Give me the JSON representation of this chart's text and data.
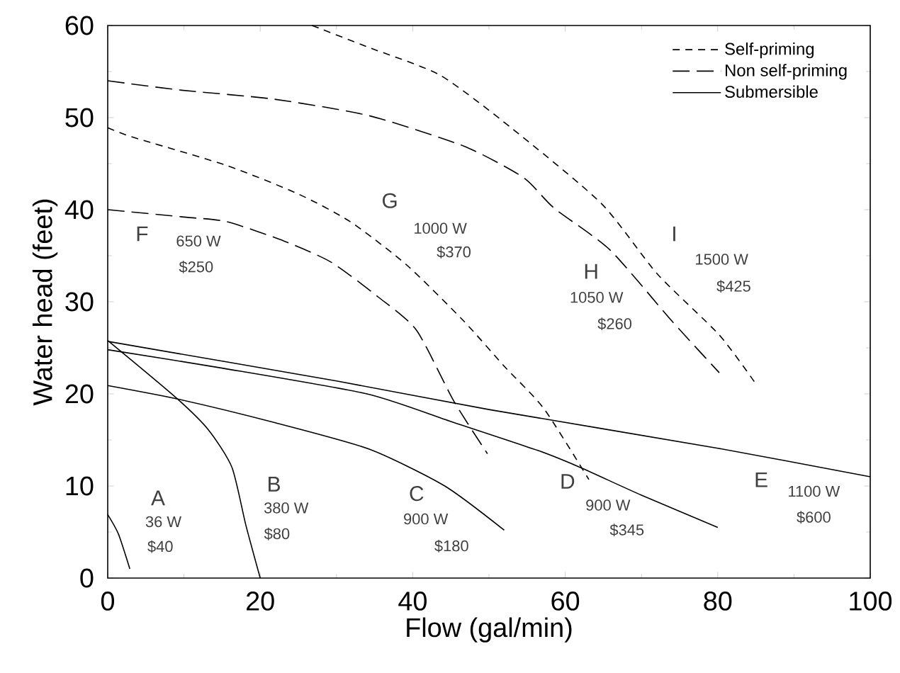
{
  "chart_data": {
    "type": "line",
    "xlabel": "Flow (gal/min)",
    "ylabel": "Water head (feet)",
    "xlim": [
      0,
      100
    ],
    "ylim": [
      0,
      60
    ],
    "xticks": [
      0,
      20,
      40,
      60,
      80,
      100
    ],
    "yticks": [
      0,
      10,
      20,
      30,
      40,
      50,
      60
    ],
    "grid": false,
    "legend": "top right",
    "marker": "none",
    "series": [
      {
        "name": "Self-priming",
        "color": "#000000",
        "line_style": "dashed",
        "x": [
          26.8,
          34.3,
          43.6,
          52.9,
          64.7,
          72.1,
          80.2,
          84.9
        ],
        "values": [
          60,
          57.6,
          54.6,
          48.9,
          40.7,
          33.0,
          26.4,
          21.2
        ]
      },
      {
        "name": "Non self-priming",
        "color": "#000000",
        "line_style": "long dashed",
        "x": [
          0,
          9.4,
          21.8,
          34.3,
          46.7,
          54.5,
          58.5,
          65.9,
          74,
          80.2
        ],
        "values": [
          54,
          53.0,
          52.0,
          50.2,
          46.9,
          43.5,
          40.2,
          35.6,
          27.9,
          22.3
        ]
      },
      {
        "name": "Submersible",
        "color": "#000000",
        "line_style": "solid",
        "x": [
          0,
          30,
          50,
          80,
          100
        ],
        "values": [
          25.7,
          21.4,
          18.3,
          14.1,
          11
        ]
      },
      {
        "color": "#000000",
        "line_style": "dashed",
        "x": [
          0,
          3.2,
          15.6,
          25,
          31.8,
          39.2,
          46.7,
          52,
          57.2,
          63.1
        ],
        "values": [
          48.9,
          47.9,
          44.8,
          41.7,
          38.7,
          34.0,
          27.9,
          23,
          18.4,
          10.7
        ]
      },
      {
        "color": "#000000",
        "line_style": "long dashed",
        "x": [
          0,
          10,
          15.6,
          23.1,
          29.3,
          35.5,
          40.5,
          45.4,
          49.8
        ],
        "values": [
          40,
          39.2,
          38.7,
          36.6,
          34.3,
          30.5,
          26.9,
          19.2,
          13.5
        ]
      },
      {
        "color": "#000000",
        "line_style": "solid",
        "x": [
          0,
          1.4,
          2.9
        ],
        "values": [
          6.9,
          4.8,
          1.0
        ]
      },
      {
        "color": "#000000",
        "line_style": "solid",
        "x": [
          0,
          8.8,
          13.2,
          16.3,
          18.1,
          20
        ],
        "values": [
          25.8,
          19.7,
          16.1,
          12,
          5.8,
          0
        ]
      },
      {
        "color": "#000000",
        "line_style": "solid",
        "x": [
          0,
          9.4,
          21.8,
          34.3,
          44.2,
          52
        ],
        "values": [
          20.9,
          19.4,
          16.9,
          14.0,
          10.0,
          5.2
        ]
      },
      {
        "color": "#000000",
        "line_style": "solid",
        "x": [
          0,
          15,
          34,
          45,
          56.6,
          62,
          70,
          80
        ],
        "values": [
          24.8,
          22.8,
          20,
          17.0,
          13.8,
          12,
          9,
          5.5
        ]
      }
    ],
    "annotations": [
      "A",
      "36 W",
      "$40",
      "B",
      "380 W",
      "$80",
      "C",
      "900 W",
      "$180",
      "D",
      "900 W",
      "$345",
      "E",
      "1100 W",
      "$600",
      "F",
      "650 W",
      "$250",
      "G",
      "1000 W",
      "$370",
      "H",
      "1050 W",
      "$260",
      "I",
      "1500 W",
      "$425"
    ]
  }
}
